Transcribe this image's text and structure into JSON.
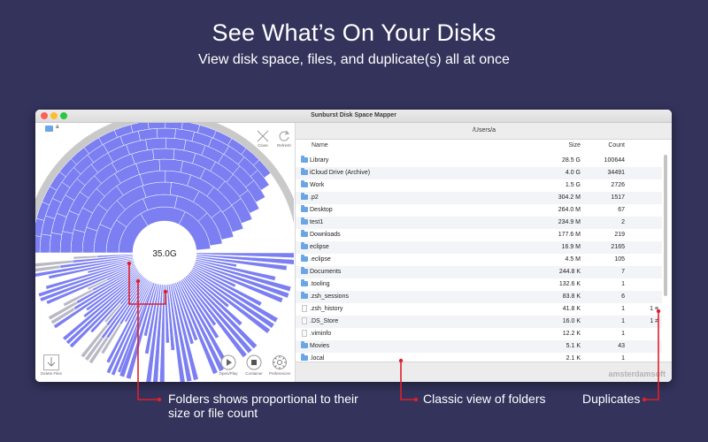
{
  "headline": {
    "title": "See What’s On Your Disks",
    "subtitle": "View disk space, files, and duplicate(s) all at once"
  },
  "window": {
    "title": "Sunburst Disk Space Mapper",
    "path": "/Users/a",
    "root_folder": "a",
    "center_size": "35.0G"
  },
  "toolbar": {
    "close": "Close",
    "refresh": "Refresh",
    "delete_files": "Delete Files",
    "open_play": "Open/Play",
    "container": "Container",
    "preferences": "Preferences"
  },
  "table": {
    "columns": [
      "Name",
      "Size",
      "Count"
    ],
    "rows": [
      {
        "name": "Library",
        "size": "28.5 G",
        "count": "100644",
        "dup": "",
        "type": "folder"
      },
      {
        "name": "iCloud Drive (Archive)",
        "size": "4.0 G",
        "count": "34491",
        "dup": "",
        "type": "folder"
      },
      {
        "name": "Work",
        "size": "1.5 G",
        "count": "2726",
        "dup": "",
        "type": "folder"
      },
      {
        "name": ".p2",
        "size": "304.2 M",
        "count": "1517",
        "dup": "",
        "type": "folder"
      },
      {
        "name": "Desktop",
        "size": "264.0 M",
        "count": "67",
        "dup": "",
        "type": "folder"
      },
      {
        "name": "test1",
        "size": "234.9 M",
        "count": "2",
        "dup": "",
        "type": "folder"
      },
      {
        "name": "Downloads",
        "size": "177.6 M",
        "count": "219",
        "dup": "",
        "type": "folder"
      },
      {
        "name": "eclipse",
        "size": "16.9 M",
        "count": "2165",
        "dup": "",
        "type": "folder"
      },
      {
        "name": ".eclipse",
        "size": "4.5 M",
        "count": "105",
        "dup": "",
        "type": "folder"
      },
      {
        "name": "Documents",
        "size": "244.8 K",
        "count": "7",
        "dup": "",
        "type": "folder"
      },
      {
        "name": ".tooling",
        "size": "132.6 K",
        "count": "1",
        "dup": "",
        "type": "folder"
      },
      {
        "name": ".zsh_sessions",
        "size": "83.8 K",
        "count": "6",
        "dup": "",
        "type": "folder"
      },
      {
        "name": ".zsh_history",
        "size": "41.8 K",
        "count": "1",
        "dup": "1 ≡",
        "type": "file"
      },
      {
        "name": ".DS_Store",
        "size": "16.0 K",
        "count": "1",
        "dup": "1 ≠",
        "type": "file"
      },
      {
        "name": ".viminfo",
        "size": "12.2 K",
        "count": "1",
        "dup": "",
        "type": "file"
      },
      {
        "name": "Movies",
        "size": "5.1 K",
        "count": "43",
        "dup": "",
        "type": "folder"
      },
      {
        "name": ".local",
        "size": "2.1 K",
        "count": "1",
        "dup": "",
        "type": "folder"
      }
    ]
  },
  "brand": "amsterdamsoft",
  "annotations": {
    "folders": "Folders shows proportional to their size or file count",
    "classic": "Classic view of folders",
    "duplicates": "Duplicates"
  },
  "colors": {
    "background": "#33335c",
    "sunburst": "#7b7ff2",
    "annotation": "#e0202a"
  }
}
